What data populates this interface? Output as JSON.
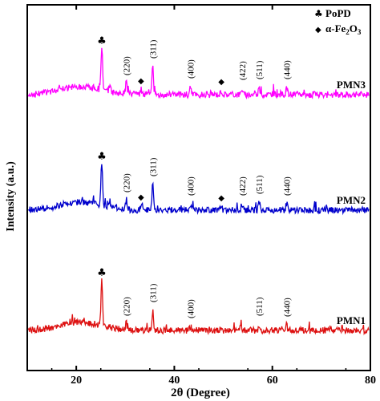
{
  "chart_data": {
    "type": "line",
    "xlabel": "2θ (Degree)",
    "ylabel": "Intensity (a.u.)",
    "xlim": [
      10,
      80
    ],
    "x_ticks": [
      20,
      40,
      60,
      80
    ],
    "legend": [
      {
        "symbol": "♣",
        "label": "PoPD"
      },
      {
        "symbol": "◆",
        "label_prefix": "α-Fe",
        "sub1": "2",
        "mid": "O",
        "sub2": "3"
      }
    ],
    "series": [
      {
        "name": "PMN3",
        "color": "#ff00ff",
        "baseline": 118,
        "peaks": [
          [
            25.2,
            55
          ],
          [
            26.8,
            8
          ],
          [
            30.2,
            14
          ],
          [
            33.2,
            6
          ],
          [
            35.6,
            35
          ],
          [
            43.3,
            10
          ],
          [
            49.6,
            5
          ],
          [
            53.8,
            8
          ],
          [
            57.3,
            9
          ],
          [
            62.9,
            9
          ]
        ],
        "labels": [
          {
            "x": 25.2,
            "text": "♣"
          },
          {
            "x": 30.2,
            "text": "(220)"
          },
          {
            "x": 33.2,
            "text": "◆"
          },
          {
            "x": 35.6,
            "text": "(311)"
          },
          {
            "x": 43.3,
            "text": "(400)"
          },
          {
            "x": 49.6,
            "text": "◆"
          },
          {
            "x": 53.8,
            "text": "(422)"
          },
          {
            "x": 57.3,
            "text": "(511)"
          },
          {
            "x": 62.9,
            "text": "(440)"
          }
        ]
      },
      {
        "name": "PMN2",
        "color": "#0000cc",
        "baseline": 262,
        "peaks": [
          [
            25.2,
            55
          ],
          [
            26.8,
            8
          ],
          [
            30.2,
            12
          ],
          [
            33.2,
            5
          ],
          [
            35.6,
            32
          ],
          [
            43.3,
            8
          ],
          [
            49.6,
            4
          ],
          [
            53.8,
            8
          ],
          [
            57.3,
            10
          ],
          [
            62.9,
            8
          ]
        ],
        "labels": [
          {
            "x": 25.2,
            "text": "♣"
          },
          {
            "x": 30.2,
            "text": "(220)"
          },
          {
            "x": 33.2,
            "text": "◆"
          },
          {
            "x": 35.6,
            "text": "(311)"
          },
          {
            "x": 43.3,
            "text": "(400)"
          },
          {
            "x": 49.6,
            "text": "◆"
          },
          {
            "x": 53.8,
            "text": "(422)"
          },
          {
            "x": 57.3,
            "text": "(511)"
          },
          {
            "x": 62.9,
            "text": "(440)"
          }
        ]
      },
      {
        "name": "PMN1",
        "color": "#dd1111",
        "baseline": 412,
        "peaks": [
          [
            25.2,
            60
          ],
          [
            30.2,
            8
          ],
          [
            35.6,
            25
          ],
          [
            43.3,
            5
          ],
          [
            57.3,
            8
          ],
          [
            62.9,
            7
          ]
        ],
        "labels": [
          {
            "x": 25.2,
            "text": "♣"
          },
          {
            "x": 30.2,
            "text": "(220)"
          },
          {
            "x": 35.6,
            "text": "(311)"
          },
          {
            "x": 43.3,
            "text": "(400)"
          },
          {
            "x": 57.3,
            "text": "(511)"
          },
          {
            "x": 62.9,
            "text": "(440)"
          }
        ]
      }
    ]
  }
}
